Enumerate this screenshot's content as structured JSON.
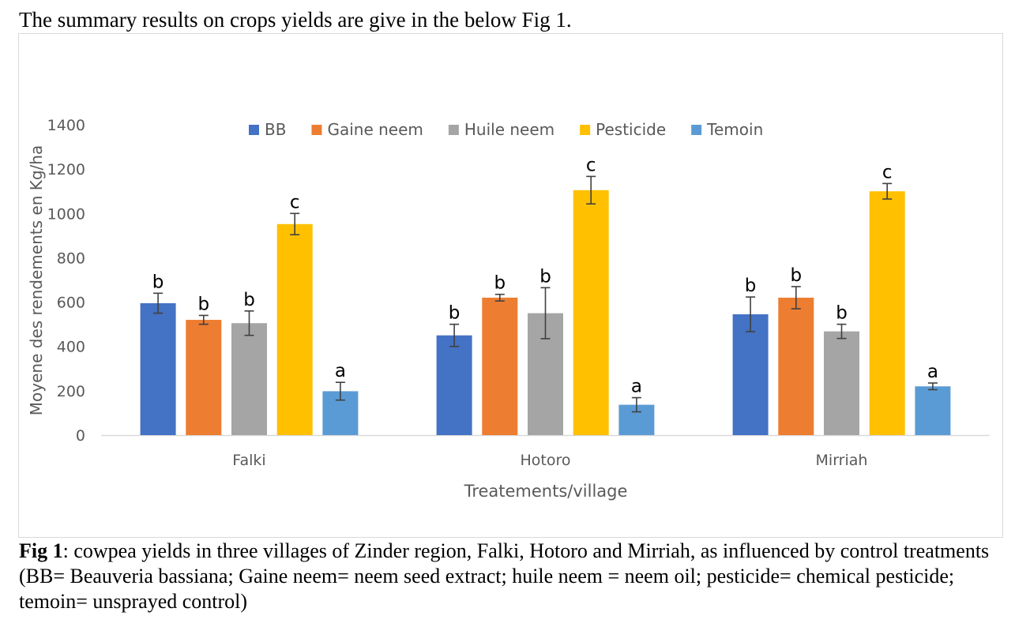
{
  "intro_text": "The summary results on crops yields are give in the below Fig 1.",
  "caption": {
    "label": "Fig 1",
    "text": ": cowpea yields in three villages of Zinder region, Falki, Hotoro and Mirriah, as influenced by control treatments (BB= Beauveria bassiana; Gaine neem= neem seed extract; huile neem = neem oil;  pesticide= chemical pesticide; temoin= unsprayed control)"
  },
  "chart_data": {
    "type": "bar",
    "title": "",
    "xlabel": "Treatements/village",
    "ylabel": "Moyene des rendements en Kg/ha",
    "ylim": [
      0,
      1400
    ],
    "yticks": [
      "0",
      "200",
      "400",
      "600",
      "800",
      "1000",
      "1200",
      "1400"
    ],
    "grid": false,
    "legend_position": "top",
    "categories": [
      "Falki",
      "Hotoro",
      "Mirriah"
    ],
    "series": [
      {
        "name": "BB",
        "color": "#4472c4",
        "values": [
          595,
          450,
          545
        ],
        "errors": [
          45,
          50,
          78
        ],
        "letters": [
          "b",
          "b",
          "b"
        ]
      },
      {
        "name": "Gaine neem",
        "color": "#ed7d31",
        "values": [
          520,
          620,
          620
        ],
        "errors": [
          20,
          15,
          50
        ],
        "letters": [
          "b",
          "b",
          "b"
        ]
      },
      {
        "name": "Huile neem",
        "color": "#a5a5a5",
        "values": [
          505,
          550,
          468
        ],
        "errors": [
          55,
          115,
          32
        ],
        "letters": [
          "b",
          "b",
          "b"
        ]
      },
      {
        "name": "Pesticide",
        "color": "#ffc000",
        "values": [
          952,
          1105,
          1100
        ],
        "errors": [
          48,
          62,
          35
        ],
        "letters": [
          "c",
          "c",
          "c"
        ]
      },
      {
        "name": "Temoin",
        "color": "#5b9bd5",
        "values": [
          198,
          137,
          220
        ],
        "errors": [
          40,
          32,
          15
        ],
        "letters": [
          "a",
          "a",
          "a"
        ]
      }
    ]
  }
}
